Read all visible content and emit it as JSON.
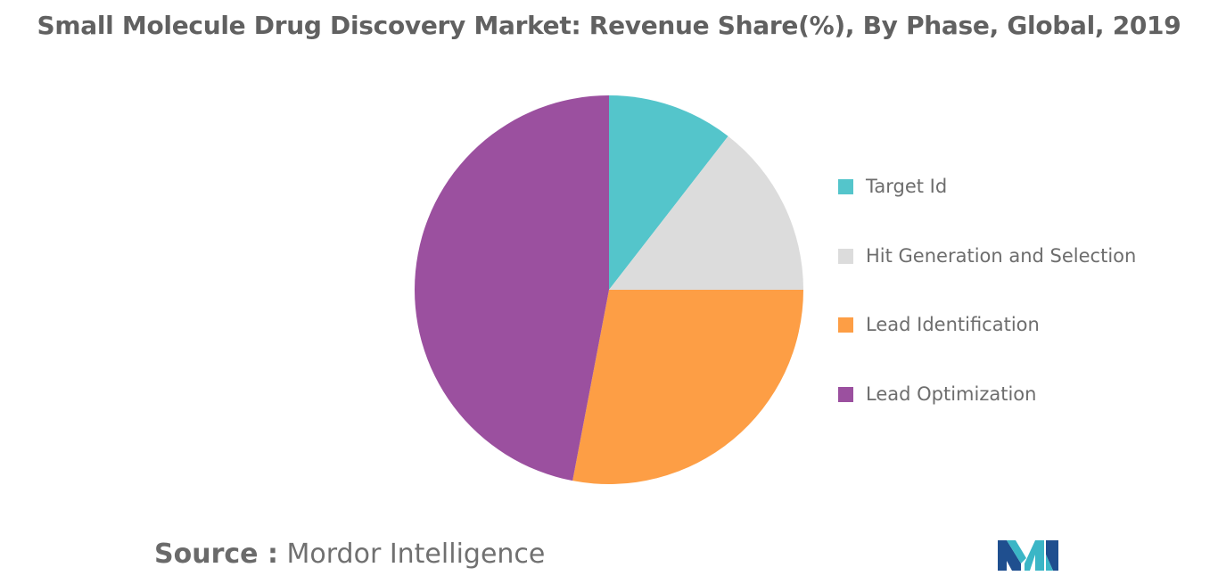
{
  "title": "Small Molecule Drug Discovery Market: Revenue Share(%), By Phase, Global, 2019",
  "chart_data": {
    "type": "pie",
    "title": "Small Molecule Drug Discovery Market: Revenue Share(%), By Phase, Global, 2019",
    "legend_position": "right",
    "slices": [
      {
        "label": "Target Id",
        "value": 10.5,
        "color": "#54c5cb"
      },
      {
        "label": "Hit Generation and Selection",
        "value": 14.5,
        "color": "#dcdcdc"
      },
      {
        "label": "Lead Identification",
        "value": 28.0,
        "color": "#fd9e45"
      },
      {
        "label": "Lead Optimization",
        "value": 47.0,
        "color": "#9b509f"
      }
    ]
  },
  "legend": {
    "items": [
      {
        "label": "Target Id",
        "color": "#54c5cb"
      },
      {
        "label": "Hit Generation and Selection",
        "color": "#dcdcdc"
      },
      {
        "label": "Lead Identification",
        "color": "#fd9e45"
      },
      {
        "label": "Lead Optimization",
        "color": "#9b509f"
      }
    ]
  },
  "source": {
    "label": "Source :",
    "name": "Mordor Intelligence"
  },
  "logo": {
    "icon": "mordor-intelligence-logo",
    "colors": [
      "#1f4f8f",
      "#3bb6c6"
    ]
  }
}
